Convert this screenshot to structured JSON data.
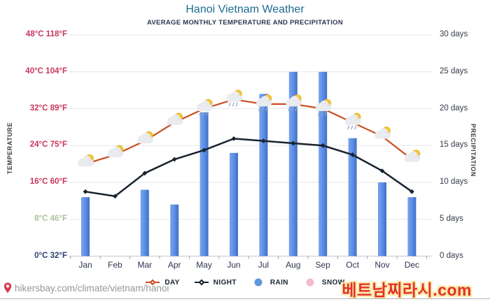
{
  "title": "Hanoi Vietnam Weather",
  "subtitle": "AVERAGE MONTHLY TEMPERATURE AND PRECIPITATION",
  "axes": {
    "left_title": "TEMPERATURE",
    "right_title": "PRECIPITATION",
    "temp_ticks": [
      {
        "label": "48°C 118°F",
        "value": 48,
        "color": "#c9365d"
      },
      {
        "label": "40°C 104°F",
        "value": 40,
        "color": "#c9365d"
      },
      {
        "label": "32°C 89°F",
        "value": 32,
        "color": "#c9365d"
      },
      {
        "label": "24°C 75°F",
        "value": 24,
        "color": "#c9365d"
      },
      {
        "label": "16°C 60°F",
        "value": 16,
        "color": "#c9365d"
      },
      {
        "label": "8°C 46°F",
        "value": 8,
        "color": "#a8c39b"
      },
      {
        "label": "0°C 32°F",
        "value": 0,
        "color": "#2b3f72"
      }
    ],
    "precip_ticks": [
      {
        "label": "30 days",
        "value": 30
      },
      {
        "label": "25 days",
        "value": 25
      },
      {
        "label": "20 days",
        "value": 20
      },
      {
        "label": "15 days",
        "value": 15
      },
      {
        "label": "10 days",
        "value": 10
      },
      {
        "label": "5 days",
        "value": 5
      },
      {
        "label": "0 days",
        "value": 0
      }
    ]
  },
  "chart_data": {
    "type": "combo-bar-line",
    "categories": [
      "Jan",
      "Feb",
      "Mar",
      "Apr",
      "May",
      "Jun",
      "Jul",
      "Aug",
      "Sep",
      "Oct",
      "Nov",
      "Dec"
    ],
    "temp_axis": {
      "min": 0,
      "max": 48,
      "step": 8,
      "unit": "°C"
    },
    "precip_axis": {
      "min": 0,
      "max": 30,
      "step": 5,
      "unit": "days"
    },
    "grid": true,
    "legend_position": "bottom",
    "series": [
      {
        "name": "DAY",
        "type": "line",
        "unit": "°C",
        "color": "#cb4d20",
        "values": [
          20,
          22,
          25,
          29,
          32,
          34,
          33,
          33,
          32,
          29,
          26,
          21
        ]
      },
      {
        "name": "NIGHT",
        "type": "line",
        "unit": "°C",
        "color": "#19232f",
        "values": [
          14,
          13,
          18,
          21,
          23,
          25.5,
          25,
          24.5,
          24,
          22,
          18.5,
          14
        ]
      },
      {
        "name": "RAIN",
        "type": "bar",
        "unit": "days",
        "color": "#5b8ce4",
        "values": [
          8,
          0,
          9,
          7,
          19.5,
          14,
          22,
          25,
          25,
          16,
          10,
          8
        ]
      },
      {
        "name": "SNOW",
        "type": "none",
        "unit": "days",
        "color": "#f2bccd",
        "values": [
          0,
          0,
          0,
          0,
          0,
          0,
          0,
          0,
          0,
          0,
          0,
          0
        ]
      }
    ],
    "icon_rain_flags": [
      false,
      false,
      false,
      false,
      true,
      true,
      true,
      true,
      true,
      true,
      false,
      false
    ]
  },
  "legend": [
    {
      "label": "DAY",
      "marker": "line-diamond",
      "color": "#cb4d20"
    },
    {
      "label": "NIGHT",
      "marker": "line-diamond",
      "color": "#19232f"
    },
    {
      "label": "RAIN",
      "marker": "circle",
      "color": "#5f97dd"
    },
    {
      "label": "SNOW",
      "marker": "circle",
      "color": "#f2bccd"
    }
  ],
  "footer": {
    "source": "hikersbay.com/climate/vietnam/hanoi"
  },
  "watermark": "베트남찌라시.com",
  "colors": {
    "title": "#1e6b94",
    "subtitle": "#2a3550",
    "bar": "#5b8ce4",
    "day_line": "#cb4d20",
    "night_line": "#19232f",
    "gridline": "#e7e7e7",
    "watermark_fill": "#e5312b",
    "watermark_outline": "#f8eba8"
  }
}
